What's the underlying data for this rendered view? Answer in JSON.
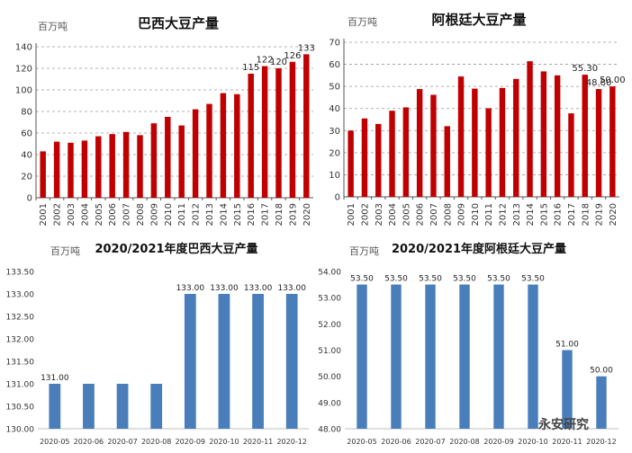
{
  "chart_data": [
    {
      "type": "bar",
      "title": "巴西大豆产量",
      "unit_label": "百万吨",
      "color": "#c00000",
      "categories": [
        "2001",
        "2002",
        "2003",
        "2004",
        "2005",
        "2006",
        "2007",
        "2008",
        "2009",
        "2010",
        "2011",
        "2012",
        "2013",
        "2014",
        "2015",
        "2016",
        "2017",
        "2018",
        "2019",
        "2020"
      ],
      "values": [
        43,
        52,
        51,
        53,
        57,
        59,
        61,
        58,
        69,
        75,
        67,
        82,
        87,
        97,
        96,
        115,
        122,
        120,
        126,
        133
      ],
      "data_labels": {
        "15": "115",
        "16": "122",
        "17": "120",
        "18": "126",
        "19": "133"
      },
      "ylim": [
        0,
        140
      ],
      "yticks": [
        0,
        20,
        40,
        60,
        80,
        100,
        120,
        140
      ],
      "tick_decimals": 0,
      "xlabel": "",
      "ylabel": "",
      "grid": true
    },
    {
      "type": "bar",
      "title": "阿根廷大豆产量",
      "unit_label": "百万吨",
      "color": "#c00000",
      "categories": [
        "2001",
        "2002",
        "2003",
        "2004",
        "2005",
        "2006",
        "2007",
        "2008",
        "2009",
        "2010",
        "2011",
        "2012",
        "2013",
        "2014",
        "2015",
        "2016",
        "2017",
        "2018",
        "2019",
        "2020"
      ],
      "values": [
        30,
        35.5,
        33,
        39,
        40.5,
        48.8,
        46.2,
        32,
        54.5,
        49,
        40.1,
        49.3,
        53.4,
        61.4,
        56.8,
        55,
        37.8,
        55.3,
        48.8,
        50
      ],
      "data_labels": {
        "17": "55.30",
        "18": "48.80",
        "19": "50.00"
      },
      "ylim": [
        0,
        70
      ],
      "yticks": [
        0,
        10,
        20,
        30,
        40,
        50,
        60,
        70
      ],
      "tick_decimals": 0,
      "xlabel": "",
      "ylabel": "",
      "grid": true
    },
    {
      "type": "bar",
      "title": "2020/2021年度巴西大豆产量",
      "unit_label": "百万吨",
      "color": "#4a7ebb",
      "categories": [
        "2020-05",
        "2020-06",
        "2020-07",
        "2020-08",
        "2020-09",
        "2020-10",
        "2020-11",
        "2020-12"
      ],
      "values": [
        131,
        131,
        131,
        131,
        133,
        133,
        133,
        133
      ],
      "data_labels": {
        "0": "131.00",
        "4": "133.00",
        "5": "133.00",
        "6": "133.00",
        "7": "133.00"
      },
      "ylim": [
        130,
        133.5
      ],
      "yticks": [
        130,
        130.5,
        131,
        131.5,
        132,
        132.5,
        133,
        133.5
      ],
      "tick_decimals": 2,
      "xlabel": "",
      "ylabel": "",
      "grid": false
    },
    {
      "type": "bar",
      "title": "2020/2021年度阿根廷大豆产量",
      "unit_label": "百万吨",
      "color": "#4a7ebb",
      "categories": [
        "2020-05",
        "2020-06",
        "2020-07",
        "2020-08",
        "2020-09",
        "2020-10",
        "2020-11",
        "2020-12"
      ],
      "values": [
        53.5,
        53.5,
        53.5,
        53.5,
        53.5,
        53.5,
        51,
        50
      ],
      "data_labels": {
        "0": "53.50",
        "1": "53.50",
        "2": "53.50",
        "3": "53.50",
        "4": "53.50",
        "5": "53.50",
        "6": "51.00",
        "7": "50.00"
      },
      "ylim": [
        48,
        54
      ],
      "yticks": [
        48,
        49,
        50,
        51,
        52,
        53,
        54
      ],
      "tick_decimals": 2,
      "xlabel": "",
      "ylabel": "",
      "grid": false
    }
  ],
  "watermark": "永安研究"
}
